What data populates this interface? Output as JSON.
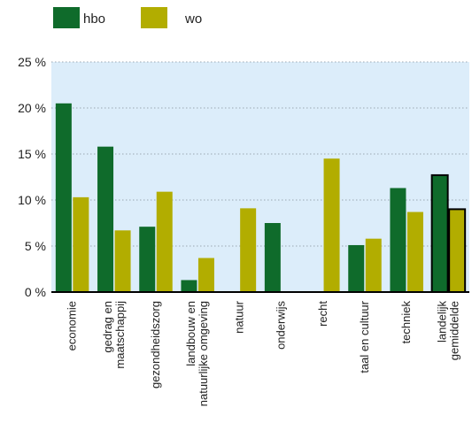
{
  "chart_data": {
    "type": "bar",
    "title": "",
    "xlabel": "",
    "ylabel": "",
    "ylim": [
      0,
      25
    ],
    "yticks": [
      0,
      5,
      10,
      15,
      20,
      25
    ],
    "ytick_labels": [
      "0 %",
      "5 %",
      "10 %",
      "15 %",
      "20 %",
      "25 %"
    ],
    "grid": "dotted-horizontal",
    "legend_position": "top-left",
    "categories": [
      [
        "economie"
      ],
      [
        "gedrag en",
        "maatschappij"
      ],
      [
        "gezondheidszorg"
      ],
      [
        "landbouw en",
        "natuurlijke omgeving"
      ],
      [
        "natuur"
      ],
      [
        "onderwijs"
      ],
      [
        "recht"
      ],
      [
        "taal en cultuur"
      ],
      [
        "techniek"
      ],
      [
        "landelijk",
        "gemiddelde"
      ]
    ],
    "series": [
      {
        "name": "hbo",
        "color": "#0f6b2b",
        "values": [
          20.5,
          15.8,
          7.1,
          1.3,
          0,
          7.5,
          0,
          5.1,
          11.3,
          12.7
        ]
      },
      {
        "name": "wo",
        "color": "#b2ad00",
        "values": [
          10.3,
          6.7,
          10.9,
          3.7,
          9.1,
          0,
          14.5,
          5.8,
          8.7,
          9.0
        ]
      }
    ],
    "highlighted_category_index": 9,
    "plot_background": "#dcedfa",
    "grid_color": "#9aa7b3",
    "axis_color": "#000000"
  }
}
